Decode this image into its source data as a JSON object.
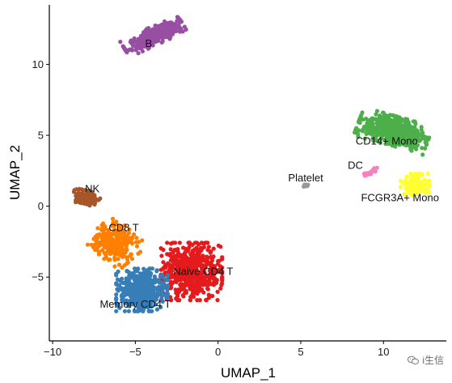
{
  "chart_data": {
    "type": "scatter",
    "xlabel": "UMAP_1",
    "ylabel": "UMAP_2",
    "xlim": [
      -10.2,
      13.8
    ],
    "ylim": [
      -9.5,
      14.2
    ],
    "x_ticks": [
      -10,
      -5,
      0,
      5,
      10
    ],
    "y_ticks": [
      -5,
      0,
      5,
      10
    ],
    "grid": false,
    "legend": "none",
    "clusters": [
      {
        "label": "B",
        "color": "#984EA3",
        "label_pos": [
          -4.2,
          11.5
        ],
        "centroid": [
          -3.9,
          12.0
        ],
        "spread": [
          1.7,
          0.55
        ],
        "angle_deg": 28,
        "approx_points": 340
      },
      {
        "label": "NK",
        "color": "#A65628",
        "label_pos": [
          -7.6,
          1.25
        ],
        "centroid": [
          -7.9,
          0.6
        ],
        "spread": [
          0.75,
          0.45
        ],
        "angle_deg": -10,
        "approx_points": 140
      },
      {
        "label": "CD8 T",
        "color": "#FF7F00",
        "label_pos": [
          -5.7,
          -1.5
        ],
        "centroid": [
          -6.2,
          -2.6
        ],
        "spread": [
          1.3,
          1.1
        ],
        "angle_deg": -45,
        "approx_points": 230
      },
      {
        "label": "Naive CD4 T",
        "color": "#E41A1C",
        "label_pos": [
          -0.9,
          -4.6
        ],
        "centroid": [
          -1.6,
          -4.6
        ],
        "spread": [
          1.6,
          1.75
        ],
        "angle_deg": 0,
        "approx_points": 600
      },
      {
        "label": "Memory CD4 T",
        "color": "#377EB8",
        "label_pos": [
          -5.0,
          -6.9
        ],
        "centroid": [
          -4.6,
          -5.9
        ],
        "spread": [
          1.35,
          1.3
        ],
        "angle_deg": 0,
        "approx_points": 480
      },
      {
        "label": "CD14+ Mono",
        "color": "#4DAF4A",
        "label_pos": [
          10.2,
          4.6
        ],
        "centroid": [
          10.6,
          5.3
        ],
        "spread": [
          1.9,
          0.9
        ],
        "angle_deg": -18,
        "approx_points": 560
      },
      {
        "label": "FCGR3A+ Mono",
        "color": "#FFFF33",
        "label_pos": [
          11.0,
          0.6
        ],
        "centroid": [
          11.9,
          1.55
        ],
        "spread": [
          0.75,
          0.65
        ],
        "angle_deg": 0,
        "approx_points": 150
      },
      {
        "label": "DC",
        "color": "#F781BF",
        "label_pos": [
          8.3,
          2.9
        ],
        "centroid": [
          9.3,
          2.45
        ],
        "spread": [
          0.45,
          0.13
        ],
        "angle_deg": 35,
        "approx_points": 30
      },
      {
        "label": "Platelet",
        "color": "#999999",
        "label_pos": [
          5.3,
          2.0
        ],
        "centroid": [
          5.3,
          1.45
        ],
        "spread": [
          0.12,
          0.08
        ],
        "angle_deg": 0,
        "approx_points": 12
      }
    ]
  },
  "watermark": {
    "text": "i生信"
  }
}
